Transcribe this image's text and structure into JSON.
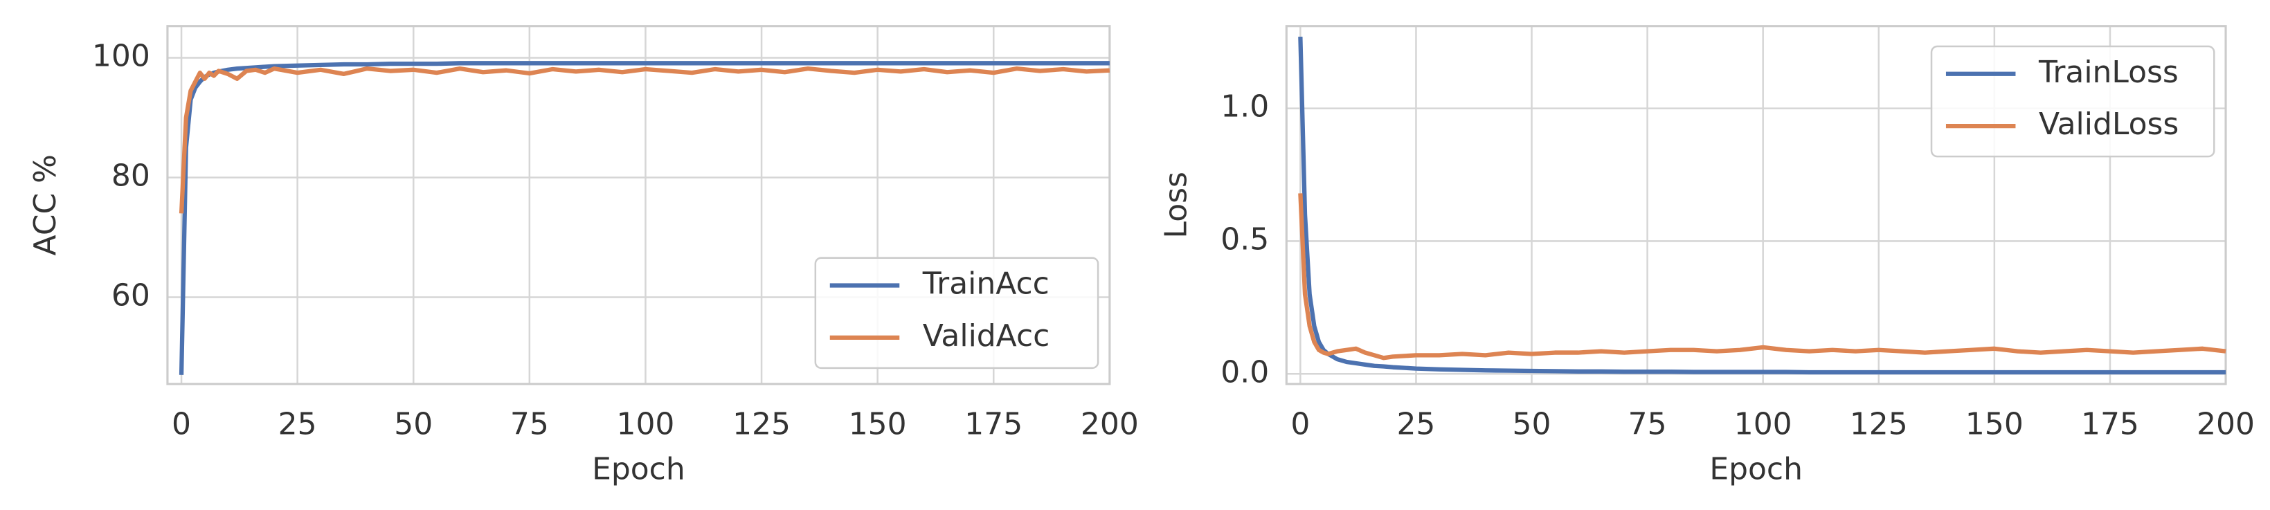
{
  "chart_data": [
    {
      "type": "line",
      "xlabel": "Epoch",
      "ylabel": "ACC %",
      "x": [
        0,
        1,
        2,
        3,
        4,
        5,
        6,
        7,
        8,
        10,
        12,
        14,
        16,
        18,
        20,
        25,
        30,
        35,
        40,
        45,
        50,
        55,
        60,
        65,
        70,
        75,
        80,
        85,
        90,
        95,
        100,
        105,
        110,
        115,
        120,
        125,
        130,
        135,
        140,
        145,
        150,
        155,
        160,
        165,
        170,
        175,
        180,
        185,
        190,
        195,
        200
      ],
      "series": [
        {
          "name": "TrainAcc",
          "color": "#4c72b0",
          "values": [
            47,
            85,
            93,
            95,
            96,
            96.8,
            97.2,
            97.5,
            97.7,
            98,
            98.2,
            98.3,
            98.4,
            98.5,
            98.6,
            98.7,
            98.8,
            98.9,
            98.9,
            99,
            99,
            99,
            99.1,
            99.1,
            99.1,
            99.1,
            99.1,
            99.1,
            99.1,
            99.1,
            99.1,
            99.1,
            99.1,
            99.1,
            99.1,
            99.1,
            99.1,
            99.1,
            99.1,
            99.1,
            99.1,
            99.1,
            99.1,
            99.1,
            99.1,
            99.1,
            99.1,
            99.1,
            99.1,
            99.1,
            99.1
          ]
        },
        {
          "name": "ValidAcc",
          "color": "#dd8452",
          "values": [
            74,
            90,
            94.5,
            96,
            97.5,
            96.5,
            97.5,
            97,
            97.8,
            97.3,
            96.5,
            97.8,
            98,
            97.5,
            98.2,
            97.5,
            98,
            97.3,
            98.2,
            97.8,
            98,
            97.5,
            98.2,
            97.6,
            97.9,
            97.4,
            98.1,
            97.7,
            98,
            97.6,
            98.1,
            97.8,
            97.5,
            98.1,
            97.7,
            98,
            97.6,
            98.2,
            97.8,
            97.5,
            98,
            97.7,
            98.1,
            97.6,
            97.9,
            97.5,
            98.2,
            97.8,
            98.1,
            97.7,
            97.9
          ]
        }
      ],
      "xlim": [
        -3,
        200
      ],
      "ylim": [
        45.5,
        105.3
      ],
      "xticks": [
        0,
        25,
        50,
        75,
        100,
        125,
        150,
        175,
        200
      ],
      "yticks": [
        60,
        80,
        100
      ],
      "legend": "lower right",
      "grid": true
    },
    {
      "type": "line",
      "xlabel": "Epoch",
      "ylabel": "Loss",
      "x": [
        0,
        1,
        2,
        3,
        4,
        5,
        6,
        7,
        8,
        10,
        12,
        14,
        16,
        18,
        20,
        25,
        30,
        35,
        40,
        45,
        50,
        55,
        60,
        65,
        70,
        75,
        80,
        85,
        90,
        95,
        100,
        105,
        110,
        115,
        120,
        125,
        130,
        135,
        140,
        145,
        150,
        155,
        160,
        165,
        170,
        175,
        180,
        185,
        190,
        195,
        200
      ],
      "series": [
        {
          "name": "TrainLoss",
          "color": "#4c72b0",
          "values": [
            1.27,
            0.6,
            0.3,
            0.18,
            0.12,
            0.09,
            0.075,
            0.065,
            0.055,
            0.045,
            0.04,
            0.035,
            0.03,
            0.028,
            0.025,
            0.02,
            0.017,
            0.015,
            0.013,
            0.012,
            0.011,
            0.01,
            0.009,
            0.009,
            0.008,
            0.008,
            0.008,
            0.007,
            0.007,
            0.007,
            0.007,
            0.007,
            0.006,
            0.006,
            0.006,
            0.006,
            0.006,
            0.006,
            0.006,
            0.006,
            0.006,
            0.006,
            0.006,
            0.006,
            0.006,
            0.006,
            0.006,
            0.006,
            0.006,
            0.006,
            0.006
          ]
        },
        {
          "name": "ValidLoss",
          "color": "#dd8452",
          "values": [
            0.68,
            0.3,
            0.18,
            0.12,
            0.09,
            0.08,
            0.075,
            0.08,
            0.085,
            0.09,
            0.095,
            0.08,
            0.07,
            0.06,
            0.065,
            0.07,
            0.07,
            0.075,
            0.07,
            0.08,
            0.075,
            0.08,
            0.08,
            0.085,
            0.08,
            0.085,
            0.09,
            0.09,
            0.085,
            0.09,
            0.1,
            0.09,
            0.085,
            0.09,
            0.085,
            0.09,
            0.085,
            0.08,
            0.085,
            0.09,
            0.095,
            0.085,
            0.08,
            0.085,
            0.09,
            0.085,
            0.08,
            0.085,
            0.09,
            0.095,
            0.085
          ]
        }
      ],
      "xlim": [
        -3,
        200
      ],
      "ylim": [
        -0.038,
        1.31
      ],
      "xticks": [
        0,
        25,
        50,
        75,
        100,
        125,
        150,
        175,
        200
      ],
      "yticks": [
        {
          "value": 0,
          "label": "0.0"
        },
        0.5,
        {
          "value": 1,
          "label": "1.0"
        }
      ],
      "legend": "upper right",
      "grid": true
    }
  ]
}
